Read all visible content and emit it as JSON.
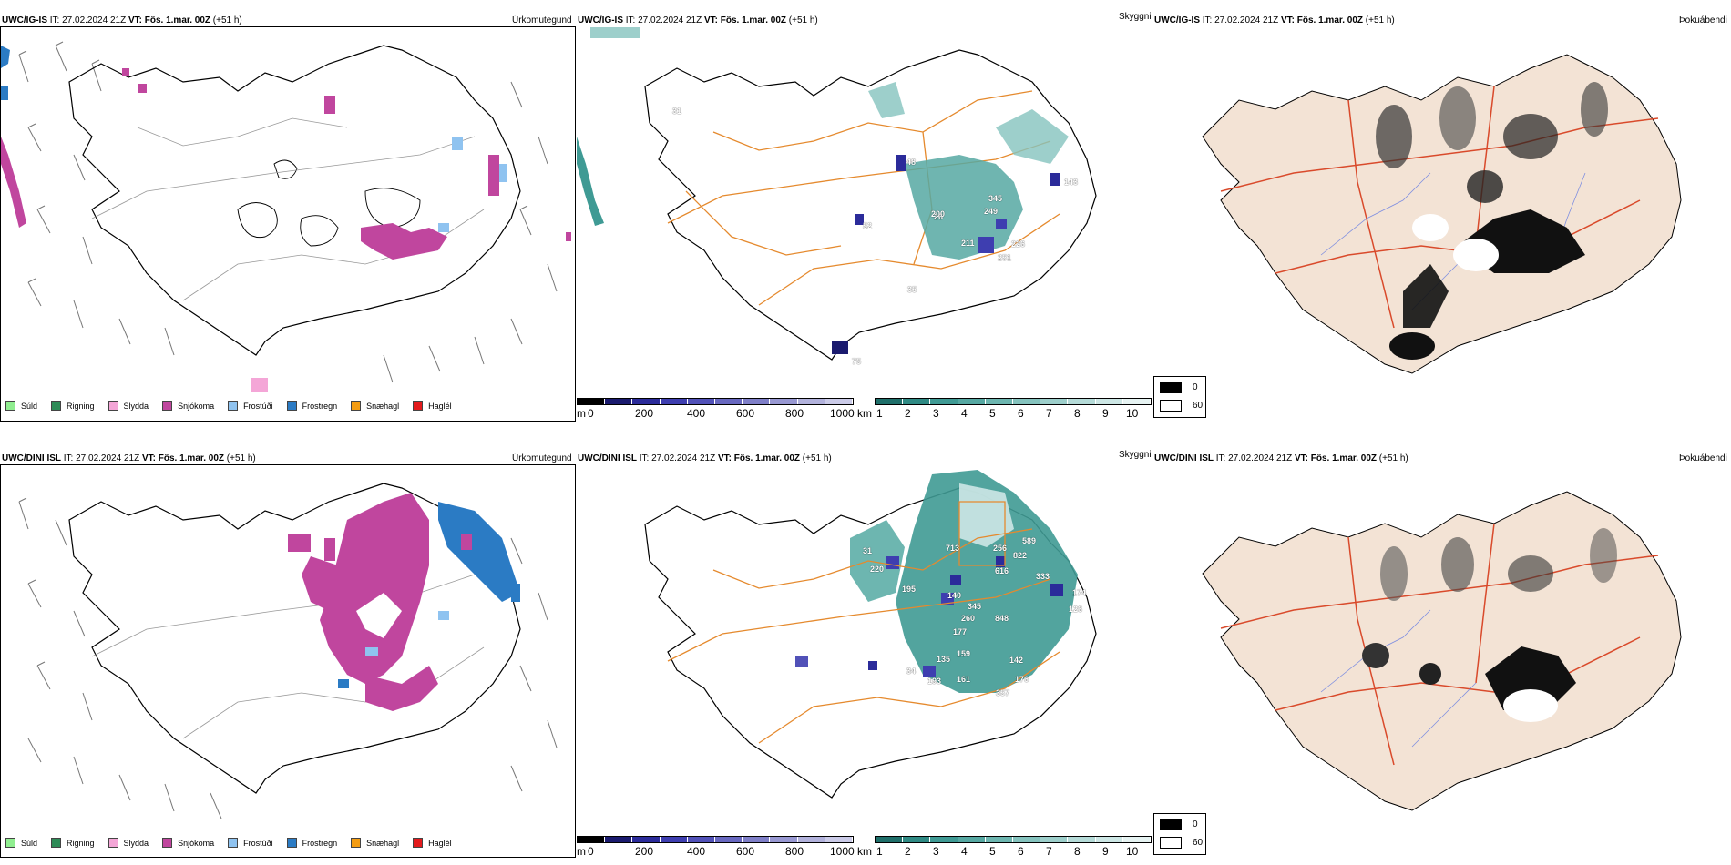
{
  "rows": [
    {
      "model": "UWC/IG-IS",
      "init_label": "IT:",
      "init_time": "27.02.2024 21Z",
      "valid_label": "VT:",
      "valid_time": "Fös. 1.mar. 00Z",
      "lead": "(+51 h)",
      "panel_titles": [
        "Úrkomutegund",
        "Skyggni",
        "Þokuábendi"
      ],
      "point_labels": [
        "48",
        "31",
        "26",
        "200",
        "345",
        "249",
        "211",
        "226",
        "251",
        "143",
        "52",
        "35",
        "75"
      ]
    },
    {
      "model": "UWC/DINI ISL",
      "init_label": "IT:",
      "init_time": "27.02.2024 21Z",
      "valid_label": "VT:",
      "valid_time": "Fös. 1.mar. 00Z",
      "lead": "(+51 h)",
      "panel_titles": [
        "Úrkomutegund",
        "Skyggni",
        "Þokuábendi"
      ],
      "point_labels": [
        "713",
        "256",
        "589",
        "822",
        "616",
        "333",
        "220",
        "195",
        "140",
        "345",
        "260",
        "848",
        "177",
        "174",
        "126",
        "193",
        "161",
        "357",
        "176",
        "135",
        "142",
        "34",
        "159",
        "31"
      ]
    }
  ],
  "precip_legend": [
    {
      "label": "Súld",
      "color": "#90ee90"
    },
    {
      "label": "Rigning",
      "color": "#2e8b57"
    },
    {
      "label": "Slydda",
      "color": "#f4a6d7"
    },
    {
      "label": "Snjókoma",
      "color": "#c0469e"
    },
    {
      "label": "Frostúði",
      "color": "#8fc3f0"
    },
    {
      "label": "Frostregn",
      "color": "#2b7bc4"
    },
    {
      "label": "Snæhagl",
      "color": "#f39c12"
    },
    {
      "label": "Haglél",
      "color": "#e31a1c"
    }
  ],
  "visibility_bar_m": {
    "unit": "m",
    "ticks": [
      "0",
      "200",
      "400",
      "600",
      "800",
      "1000"
    ],
    "colors": [
      "#000000",
      "#1a1a6e",
      "#2b2b9a",
      "#3e3eb0",
      "#5151b8",
      "#6868c0",
      "#7f7fc8",
      "#9898d2",
      "#b2b2dc",
      "#cbcbe8"
    ]
  },
  "visibility_bar_km": {
    "unit": "km",
    "ticks": [
      "1",
      "2",
      "3",
      "4",
      "5",
      "6",
      "7",
      "8",
      "9",
      "10"
    ],
    "colors": [
      "#1f6f6a",
      "#2f8a84",
      "#3f9a94",
      "#56a8a2",
      "#6db6b0",
      "#85c3be",
      "#9dcfcb",
      "#b5dbd8",
      "#cde7e5",
      "#e6f3f2"
    ]
  },
  "fog_legend": [
    {
      "label": "0",
      "color": "#000000"
    },
    {
      "label": "60",
      "color": "#ffffff"
    }
  ],
  "colors": {
    "coast": "#000000",
    "roads_orange": "#e58a2e",
    "roads_red": "#d94a2b",
    "land_beige": "#f3e3d5",
    "rivers": "#7f8fe0"
  }
}
